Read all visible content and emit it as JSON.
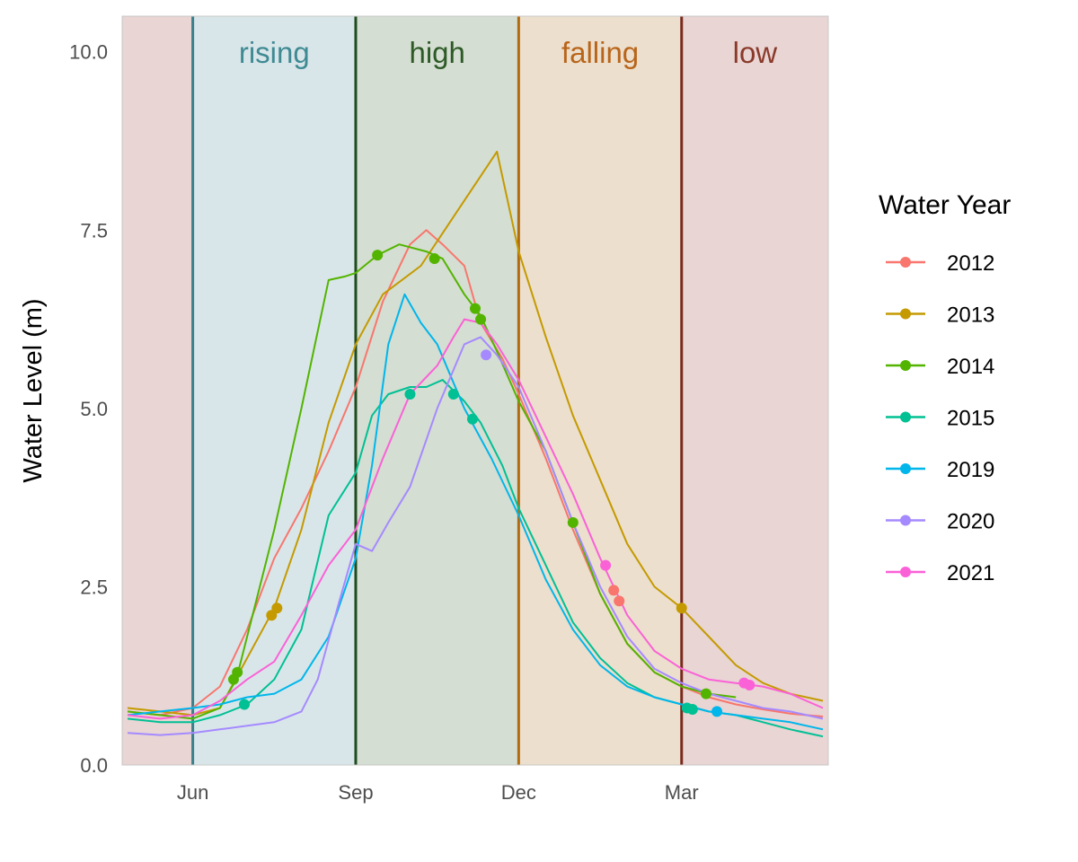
{
  "chart_data": {
    "type": "line",
    "title": "",
    "xlabel": "",
    "ylabel": "Water Level (m)",
    "ylim": [
      0,
      10.5
    ],
    "yticks": [
      0,
      2.5,
      5,
      7.5,
      10
    ],
    "ytick_labels": [
      "0.0",
      "2.5",
      "5.0",
      "7.5",
      "10.0"
    ],
    "xlim": [
      -1.3,
      11.7
    ],
    "xticks": [
      {
        "value": 0,
        "label": "Jun"
      },
      {
        "value": 3,
        "label": "Sep"
      },
      {
        "value": 6,
        "label": "Dec"
      },
      {
        "value": 9,
        "label": "Mar"
      }
    ],
    "x_unit": "months since 1 Jun",
    "grid": false,
    "legend": {
      "title": "Water Year",
      "position": "right"
    },
    "seasons": [
      {
        "label": "",
        "start": -1.3,
        "end": 0,
        "fill": "#e8d5d4",
        "line": "#7a2a1f"
      },
      {
        "label": "rising",
        "start": 0,
        "end": 3,
        "fill": "#d9e6e9",
        "line": "#3a7f8a",
        "text_color": "#3f8a93"
      },
      {
        "label": "high",
        "start": 3,
        "end": 6,
        "fill": "#d5ded2",
        "line": "#1f4d1f",
        "text_color": "#2d5a27"
      },
      {
        "label": "falling",
        "start": 6,
        "end": 9,
        "fill": "#ecdfcd",
        "line": "#b06a10",
        "text_color": "#b8651a"
      },
      {
        "label": "low",
        "start": 9,
        "end": 11.7,
        "fill": "#e8d5d4",
        "line": "#7a2a1f",
        "text_color": "#8b3a2a"
      }
    ],
    "series": [
      {
        "name": "2012",
        "color": "#F8766D",
        "x": [
          -1.2,
          -0.6,
          0,
          0.5,
          1.0,
          1.5,
          2.0,
          2.5,
          3.0,
          3.5,
          4.0,
          4.3,
          4.6,
          5.0,
          5.3,
          5.7,
          6.0,
          6.5,
          7.0,
          7.5,
          8.0,
          8.5,
          9.0,
          9.5,
          10.0,
          10.5,
          11.0,
          11.6
        ],
        "y": [
          0.75,
          0.7,
          0.8,
          1.1,
          1.9,
          2.9,
          3.6,
          4.4,
          5.3,
          6.5,
          7.3,
          7.5,
          7.3,
          7.0,
          6.2,
          5.7,
          5.2,
          4.3,
          3.3,
          2.4,
          1.7,
          1.3,
          1.1,
          0.95,
          0.85,
          0.78,
          0.72,
          0.68
        ],
        "markers": [
          {
            "x": 7.75,
            "y": 2.45
          },
          {
            "x": 7.85,
            "y": 2.3
          }
        ]
      },
      {
        "name": "2013",
        "color": "#C49A00",
        "x": [
          -1.2,
          -0.6,
          0,
          0.5,
          1.0,
          1.5,
          2.0,
          2.5,
          3.0,
          3.5,
          4.2,
          5.6,
          6.0,
          6.5,
          7.0,
          7.5,
          8.0,
          8.5,
          9.0,
          9.5,
          10.0,
          10.5,
          11.0,
          11.6
        ],
        "y": [
          0.8,
          0.75,
          0.7,
          0.8,
          1.5,
          2.2,
          3.3,
          4.8,
          5.9,
          6.6,
          7.0,
          8.6,
          7.2,
          6.0,
          4.9,
          4.0,
          3.1,
          2.5,
          2.2,
          1.8,
          1.4,
          1.15,
          1.0,
          0.9
        ],
        "markers": [
          {
            "x": 1.45,
            "y": 2.1
          },
          {
            "x": 1.55,
            "y": 2.2
          },
          {
            "x": 9.0,
            "y": 2.2
          }
        ]
      },
      {
        "name": "2014",
        "color": "#53B400",
        "x": [
          -1.2,
          -0.6,
          0,
          0.5,
          0.8,
          1.0,
          1.5,
          2.0,
          2.5,
          2.8,
          3.0,
          3.4,
          3.8,
          4.3,
          4.6,
          5.0,
          5.3,
          5.6,
          6.0,
          6.5,
          7.0,
          7.5,
          8.0,
          8.5,
          9.0,
          9.5,
          10.0
        ],
        "y": [
          0.75,
          0.7,
          0.65,
          0.8,
          1.2,
          1.8,
          3.3,
          5.0,
          6.8,
          6.85,
          6.9,
          7.15,
          7.3,
          7.2,
          7.1,
          6.6,
          6.3,
          5.8,
          5.1,
          4.4,
          3.4,
          2.4,
          1.7,
          1.3,
          1.1,
          1.0,
          0.95
        ],
        "markers": [
          {
            "x": 0.75,
            "y": 1.2
          },
          {
            "x": 0.82,
            "y": 1.3
          },
          {
            "x": 3.4,
            "y": 7.15
          },
          {
            "x": 4.45,
            "y": 7.1
          },
          {
            "x": 5.2,
            "y": 6.4
          },
          {
            "x": 5.3,
            "y": 6.25
          },
          {
            "x": 7.0,
            "y": 3.4
          },
          {
            "x": 9.45,
            "y": 1.0
          }
        ]
      },
      {
        "name": "2015",
        "color": "#00C094",
        "x": [
          -1.2,
          -0.6,
          0,
          0.5,
          1.0,
          1.5,
          2.0,
          2.5,
          3.0,
          3.3,
          3.6,
          4.0,
          4.3,
          4.6,
          5.0,
          5.3,
          5.7,
          6.0,
          6.5,
          7.0,
          7.5,
          8.0,
          8.5,
          9.0,
          9.5,
          10.0,
          10.5,
          11.0,
          11.6
        ],
        "y": [
          0.65,
          0.6,
          0.6,
          0.7,
          0.85,
          1.2,
          1.9,
          3.5,
          4.1,
          4.9,
          5.2,
          5.3,
          5.3,
          5.4,
          5.1,
          4.8,
          4.2,
          3.6,
          2.8,
          2.0,
          1.5,
          1.15,
          0.95,
          0.85,
          0.75,
          0.7,
          0.6,
          0.5,
          0.4
        ],
        "markers": [
          {
            "x": 0.95,
            "y": 0.85
          },
          {
            "x": 4.0,
            "y": 5.2
          },
          {
            "x": 4.8,
            "y": 5.2
          },
          {
            "x": 5.15,
            "y": 4.85
          },
          {
            "x": 9.1,
            "y": 0.8
          },
          {
            "x": 9.2,
            "y": 0.78
          }
        ]
      },
      {
        "name": "2019",
        "color": "#00B6EB",
        "x": [
          -1.2,
          -0.6,
          0,
          0.5,
          1.0,
          1.5,
          2.0,
          2.5,
          3.0,
          3.3,
          3.6,
          3.9,
          4.2,
          4.5,
          5.0,
          5.5,
          6.0,
          6.5,
          7.0,
          7.5,
          8.0,
          8.5,
          9.0,
          9.5,
          10.0,
          10.5,
          11.0,
          11.6
        ],
        "y": [
          0.7,
          0.75,
          0.8,
          0.85,
          0.95,
          1.0,
          1.2,
          1.8,
          2.9,
          4.2,
          5.9,
          6.6,
          6.2,
          5.9,
          5.0,
          4.3,
          3.5,
          2.6,
          1.9,
          1.4,
          1.1,
          0.95,
          0.85,
          0.75,
          0.7,
          0.65,
          0.6,
          0.5
        ],
        "markers": [
          {
            "x": 9.65,
            "y": 0.75
          }
        ]
      },
      {
        "name": "2020",
        "color": "#A58AFF",
        "x": [
          -1.2,
          -0.6,
          0,
          0.5,
          1.0,
          1.5,
          2.0,
          2.3,
          2.7,
          3.0,
          3.3,
          3.6,
          4.0,
          4.5,
          5.0,
          5.3,
          5.6,
          6.0,
          6.5,
          7.0,
          7.5,
          8.0,
          8.5,
          9.0,
          9.5,
          10.0,
          10.5,
          11.0,
          11.6
        ],
        "y": [
          0.45,
          0.42,
          0.45,
          0.5,
          0.55,
          0.6,
          0.75,
          1.2,
          2.3,
          3.1,
          3.0,
          3.4,
          3.9,
          5.0,
          5.9,
          6.0,
          5.75,
          5.3,
          4.4,
          3.4,
          2.5,
          1.8,
          1.35,
          1.15,
          1.0,
          0.9,
          0.8,
          0.75,
          0.65
        ],
        "markers": [
          {
            "x": 5.4,
            "y": 5.75
          }
        ]
      },
      {
        "name": "2021",
        "color": "#FB61D7",
        "x": [
          -1.2,
          -0.6,
          0,
          0.5,
          1.0,
          1.5,
          2.0,
          2.5,
          3.0,
          3.5,
          4.0,
          4.5,
          4.8,
          5.0,
          5.3,
          5.6,
          6.0,
          6.5,
          7.0,
          7.5,
          8.0,
          8.5,
          9.0,
          9.5,
          10.0,
          10.5,
          11.0,
          11.6
        ],
        "y": [
          0.7,
          0.65,
          0.7,
          0.9,
          1.2,
          1.45,
          2.1,
          2.8,
          3.3,
          4.3,
          5.2,
          5.6,
          6.0,
          6.25,
          6.2,
          5.9,
          5.4,
          4.6,
          3.8,
          2.9,
          2.1,
          1.6,
          1.35,
          1.2,
          1.15,
          1.1,
          1.0,
          0.8
        ],
        "markers": [
          {
            "x": 7.6,
            "y": 2.8
          },
          {
            "x": 10.15,
            "y": 1.15
          },
          {
            "x": 10.25,
            "y": 1.12
          }
        ]
      }
    ]
  }
}
